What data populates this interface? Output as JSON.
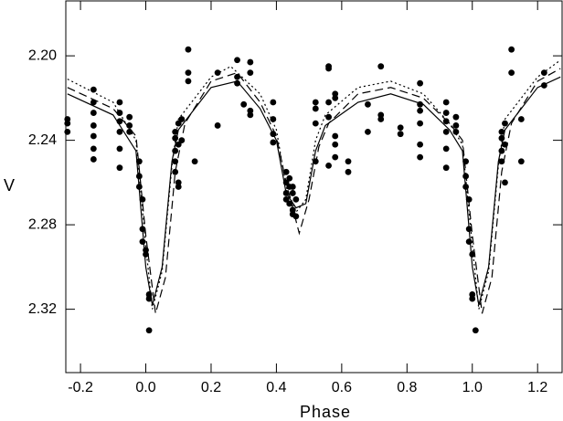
{
  "chart_data": {
    "type": "scatter",
    "xlabel": "Phase",
    "ylabel": "V",
    "xlim": [
      -0.245,
      1.275
    ],
    "ylim": [
      2.174,
      2.35
    ],
    "y_inverted": true,
    "xticks": [
      -0.2,
      {
        "value": 0,
        "label": "0.0"
      },
      0.2,
      0.4,
      0.6,
      0.8,
      {
        "value": 1,
        "label": "1.0"
      },
      1.2
    ],
    "yticks": [
      {
        "value": 2.2,
        "label": "2.20"
      },
      2.24,
      2.28,
      2.32
    ],
    "series": [
      {
        "type": "scatter",
        "color": "#000000",
        "x": [
          -0.24,
          -0.24,
          -0.24,
          -0.16,
          -0.16,
          -0.16,
          -0.16,
          -0.16,
          -0.16,
          -0.16,
          -0.08,
          -0.08,
          -0.08,
          -0.08,
          -0.08,
          -0.08,
          -0.05,
          -0.05,
          -0.05,
          -0.02,
          -0.02,
          -0.02,
          -0.01,
          -0.01,
          -0.01,
          0,
          0,
          0.01,
          0.01,
          0.01,
          0.09,
          0.09,
          0.09,
          0.09,
          0.09,
          0.1,
          0.1,
          0.1,
          0.1,
          0.11,
          0.11,
          0.13,
          0.13,
          0.13,
          0.15,
          0.22,
          0.22,
          0.28,
          0.28,
          0.28,
          0.3,
          0.32,
          0.32,
          0.32,
          0.32,
          0.39,
          0.39,
          0.39,
          0.39,
          0.43,
          0.43,
          0.43,
          0.43,
          0.44,
          0.44,
          0.44,
          0.45,
          0.45,
          0.45,
          0.45,
          0.46,
          0.46,
          0.52,
          0.52,
          0.52,
          0.52,
          0.56,
          0.56,
          0.56,
          0.56,
          0.56,
          0.58,
          0.58,
          0.58,
          0.58,
          0.58,
          0.62,
          0.62,
          0.68,
          0.68,
          0.72,
          0.72,
          0.72,
          0.78,
          0.78,
          0.84,
          0.84,
          0.84,
          0.84,
          0.84,
          0.84,
          0.92,
          0.92,
          0.92,
          0.92,
          0.92,
          0.92,
          0.95,
          0.95,
          0.95,
          0.98,
          0.98,
          0.98,
          0.99,
          0.99,
          0.99,
          1,
          1,
          1,
          1.01,
          1.09,
          1.09,
          1.09,
          1.09,
          1.1,
          1.1,
          1.1,
          1.12,
          1.12,
          1.15,
          1.15,
          1.22,
          1.22
        ],
        "values": [
          2.232,
          2.236,
          2.23,
          2.222,
          2.227,
          2.233,
          2.238,
          2.244,
          2.249,
          2.216,
          2.222,
          2.227,
          2.231,
          2.236,
          2.253,
          2.244,
          2.229,
          2.233,
          2.236,
          2.25,
          2.257,
          2.262,
          2.268,
          2.282,
          2.288,
          2.294,
          2.292,
          2.313,
          2.315,
          2.33,
          2.239,
          2.245,
          2.25,
          2.255,
          2.236,
          2.232,
          2.242,
          2.26,
          2.262,
          2.23,
          2.24,
          2.197,
          2.208,
          2.212,
          2.25,
          2.208,
          2.233,
          2.202,
          2.21,
          2.213,
          2.223,
          2.203,
          2.208,
          2.226,
          2.228,
          2.222,
          2.23,
          2.237,
          2.241,
          2.255,
          2.26,
          2.265,
          2.268,
          2.258,
          2.262,
          2.27,
          2.262,
          2.265,
          2.273,
          2.275,
          2.268,
          2.276,
          2.222,
          2.225,
          2.232,
          2.25,
          2.205,
          2.206,
          2.222,
          2.229,
          2.252,
          2.218,
          2.22,
          2.238,
          2.242,
          2.248,
          2.25,
          2.255,
          2.223,
          2.236,
          2.205,
          2.228,
          2.23,
          2.234,
          2.237,
          2.223,
          2.226,
          2.232,
          2.242,
          2.248,
          2.213,
          2.222,
          2.227,
          2.231,
          2.236,
          2.244,
          2.253,
          2.229,
          2.233,
          2.236,
          2.25,
          2.257,
          2.262,
          2.268,
          2.282,
          2.288,
          2.294,
          2.313,
          2.315,
          2.33,
          2.239,
          2.245,
          2.25,
          2.236,
          2.232,
          2.242,
          2.26,
          2.197,
          2.208,
          2.23,
          2.25,
          2.208,
          2.214
        ]
      },
      {
        "type": "line",
        "dash": "solid",
        "color": "#000000",
        "x": [
          -0.24,
          -0.1,
          -0.03,
          0,
          0.02,
          0.05,
          0.08,
          0.1,
          0.2,
          0.28,
          0.35,
          0.4,
          0.43,
          0.46,
          0.49,
          0.52,
          0.55,
          0.65,
          0.75,
          0.85,
          0.93,
          0.97,
          1,
          1.02,
          1.05,
          1.08,
          1.1,
          1.2,
          1.27
        ],
        "values": [
          2.218,
          2.228,
          2.245,
          2.3,
          2.318,
          2.3,
          2.25,
          2.235,
          2.215,
          2.212,
          2.225,
          2.24,
          2.265,
          2.272,
          2.27,
          2.245,
          2.233,
          2.222,
          2.218,
          2.223,
          2.235,
          2.245,
          2.3,
          2.318,
          2.3,
          2.25,
          2.235,
          2.215,
          2.21
        ]
      },
      {
        "type": "line",
        "dash": "dashed",
        "color": "#000000",
        "x": [
          -0.24,
          -0.1,
          -0.03,
          0,
          0.03,
          0.06,
          0.09,
          0.12,
          0.2,
          0.28,
          0.35,
          0.4,
          0.43,
          0.47,
          0.5,
          0.53,
          0.56,
          0.65,
          0.75,
          0.85,
          0.93,
          0.97,
          1,
          1.03,
          1.06,
          1.09,
          1.12,
          1.2,
          1.27
        ],
        "values": [
          2.215,
          2.225,
          2.238,
          2.285,
          2.322,
          2.305,
          2.255,
          2.232,
          2.212,
          2.208,
          2.222,
          2.238,
          2.26,
          2.284,
          2.268,
          2.243,
          2.232,
          2.218,
          2.215,
          2.22,
          2.232,
          2.24,
          2.285,
          2.322,
          2.305,
          2.255,
          2.232,
          2.212,
          2.206
        ]
      },
      {
        "type": "line",
        "dash": "dotted",
        "color": "#000000",
        "x": [
          -0.24,
          -0.1,
          -0.03,
          0,
          0.02,
          0.05,
          0.08,
          0.1,
          0.2,
          0.26,
          0.35,
          0.4,
          0.43,
          0.46,
          0.49,
          0.52,
          0.55,
          0.65,
          0.75,
          0.85,
          0.93,
          0.97,
          1,
          1.02,
          1.05,
          1.08,
          1.1,
          1.2,
          1.27
        ],
        "values": [
          2.211,
          2.222,
          2.24,
          2.29,
          2.32,
          2.302,
          2.252,
          2.23,
          2.21,
          2.205,
          2.218,
          2.235,
          2.262,
          2.274,
          2.268,
          2.24,
          2.228,
          2.215,
          2.212,
          2.218,
          2.232,
          2.242,
          2.29,
          2.32,
          2.302,
          2.252,
          2.23,
          2.21,
          2.202
        ]
      }
    ]
  }
}
